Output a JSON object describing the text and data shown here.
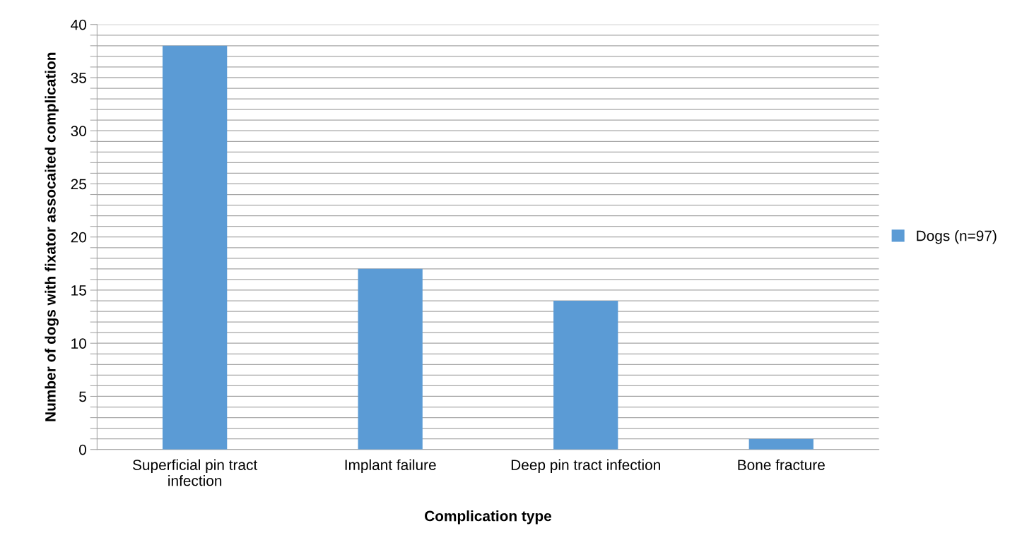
{
  "chart_data": {
    "type": "bar",
    "xlabel": "Complication type",
    "ylabel": "Number of dogs with fixator assocaited complication",
    "categories": [
      "Superficial pin tract\ninfection",
      "Implant failure",
      "Deep pin tract infection",
      "Bone fracture"
    ],
    "series": [
      {
        "name": "Dogs (n=97)",
        "color": "#5b9bd5",
        "values": [
          38,
          17,
          14,
          1
        ]
      }
    ],
    "ylim": [
      0,
      40
    ],
    "yticks": [
      0,
      {
        "value": 1,
        "label": null
      },
      {
        "value": 2,
        "label": null
      },
      {
        "value": 3,
        "label": null
      },
      {
        "value": 4,
        "label": null
      },
      5,
      {
        "value": 6,
        "label": null
      },
      {
        "value": 7,
        "label": null
      },
      {
        "value": 8,
        "label": null
      },
      {
        "value": 9,
        "label": null
      },
      10,
      {
        "value": 11,
        "label": null
      },
      {
        "value": 12,
        "label": null
      },
      {
        "value": 13,
        "label": null
      },
      {
        "value": 14,
        "label": null
      },
      15,
      {
        "value": 16,
        "label": null
      },
      {
        "value": 17,
        "label": null
      },
      {
        "value": 18,
        "label": null
      },
      {
        "value": 19,
        "label": null
      },
      20,
      {
        "value": 21,
        "label": null
      },
      {
        "value": 22,
        "label": null
      },
      {
        "value": 23,
        "label": null
      },
      {
        "value": 24,
        "label": null
      },
      25,
      {
        "value": 26,
        "label": null
      },
      {
        "value": 27,
        "label": null
      },
      {
        "value": 28,
        "label": null
      },
      {
        "value": 29,
        "label": null
      },
      30,
      {
        "value": 31,
        "label": null
      },
      {
        "value": 32,
        "label": null
      },
      {
        "value": 33,
        "label": null
      },
      {
        "value": 34,
        "label": null
      },
      35,
      {
        "value": 36,
        "label": null
      },
      {
        "value": 37,
        "label": null
      },
      {
        "value": 38,
        "label": null
      },
      {
        "value": 39,
        "label": null
      },
      40
    ],
    "grid": "y",
    "legend": "right"
  }
}
